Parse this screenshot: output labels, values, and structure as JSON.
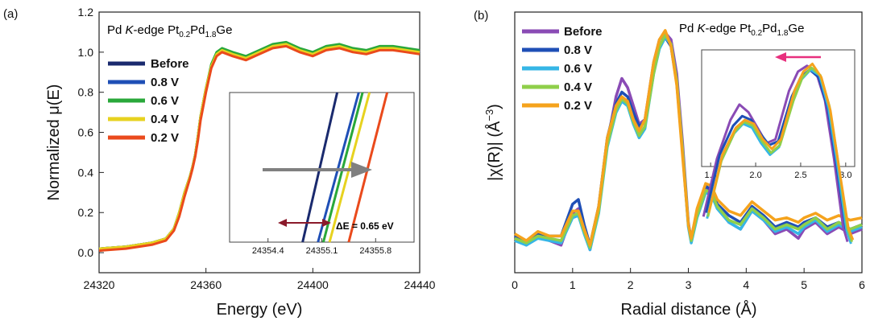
{
  "colors": {
    "Before_a": "#1a2a6e",
    "Before_b": "#8a4bb5",
    "v08": "#1f4fb6",
    "v06": "#29a83a",
    "v04": "#e7d21f",
    "v02": "#ea4a1c",
    "b_v06": "#35b6e6",
    "b_v04": "#8fcf4a",
    "b_v02": "#f5a31d",
    "title_a": "#8a2a64",
    "title_b": "#e8294a",
    "de": "#8b1a2b",
    "gray_arrow": "#808080",
    "pink_arrow": "#e8307e"
  },
  "chart_data": [
    {
      "panel": "(a)",
      "type": "line",
      "title_main": "Pd ",
      "title_italic": "K",
      "title_rest": "-edge Pt",
      "sub1": "0.2",
      "mid": "Pd",
      "sub2": "1.8",
      "tail": "Ge",
      "xlabel": "Energy (eV)",
      "ylabel": "Normalized μ(E)",
      "xlim": [
        24320,
        24440
      ],
      "ylim": [
        -0.1,
        1.2
      ],
      "xticks": [
        "24320",
        "24360",
        "24400",
        "24440"
      ],
      "xtick_values": [
        24320,
        24360,
        24400,
        24440
      ],
      "yticks": [
        "0.0",
        "0.2",
        "0.4",
        "0.6",
        "0.8",
        "1.0",
        "1.2"
      ],
      "ytick_values": [
        0.0,
        0.2,
        0.4,
        0.6,
        0.8,
        1.0,
        1.2
      ],
      "legend": [
        "Before",
        "0.8 V",
        "0.6 V",
        "0.4 V",
        "0.2 V"
      ],
      "series_x": [
        24320,
        24330,
        24340,
        24345,
        24348,
        24350,
        24352,
        24354,
        24355,
        24356,
        24357,
        24358,
        24360,
        24362,
        24364,
        24366,
        24370,
        24375,
        24380,
        24385,
        24390,
        24395,
        24400,
        24405,
        24410,
        24415,
        24420,
        24425,
        24430,
        24435,
        24440
      ],
      "series": [
        {
          "name": "Before",
          "values": [
            0.02,
            0.03,
            0.05,
            0.07,
            0.12,
            0.2,
            0.3,
            0.38,
            0.43,
            0.49,
            0.58,
            0.68,
            0.82,
            0.93,
            0.99,
            1.01,
            0.99,
            0.97,
            1.0,
            1.03,
            1.04,
            1.01,
            0.99,
            1.02,
            1.03,
            1.01,
            1.0,
            1.02,
            1.02,
            1.01,
            1.0
          ]
        },
        {
          "name": "0.8 V",
          "values": [
            0.02,
            0.03,
            0.05,
            0.07,
            0.12,
            0.2,
            0.3,
            0.38,
            0.43,
            0.49,
            0.58,
            0.68,
            0.82,
            0.93,
            0.99,
            1.01,
            0.99,
            0.97,
            1.0,
            1.03,
            1.04,
            1.01,
            0.99,
            1.02,
            1.03,
            1.01,
            1.0,
            1.02,
            1.02,
            1.01,
            1.0
          ]
        },
        {
          "name": "0.6 V",
          "values": [
            0.02,
            0.03,
            0.05,
            0.07,
            0.12,
            0.2,
            0.3,
            0.38,
            0.43,
            0.49,
            0.58,
            0.68,
            0.82,
            0.94,
            1.0,
            1.02,
            1.0,
            0.98,
            1.01,
            1.04,
            1.05,
            1.02,
            1.0,
            1.03,
            1.04,
            1.02,
            1.01,
            1.03,
            1.03,
            1.02,
            1.01
          ]
        },
        {
          "name": "0.4 V",
          "values": [
            0.02,
            0.03,
            0.05,
            0.07,
            0.12,
            0.2,
            0.3,
            0.38,
            0.43,
            0.49,
            0.58,
            0.68,
            0.82,
            0.93,
            0.99,
            1.01,
            0.99,
            0.97,
            1.0,
            1.03,
            1.04,
            1.01,
            0.99,
            1.02,
            1.03,
            1.01,
            1.0,
            1.02,
            1.02,
            1.01,
            1.0
          ]
        },
        {
          "name": "0.2 V",
          "values": [
            0.01,
            0.02,
            0.04,
            0.06,
            0.11,
            0.18,
            0.28,
            0.37,
            0.42,
            0.48,
            0.56,
            0.66,
            0.8,
            0.92,
            0.98,
            1.0,
            0.98,
            0.96,
            0.99,
            1.02,
            1.03,
            1.0,
            0.98,
            1.01,
            1.02,
            1.0,
            0.99,
            1.01,
            1.01,
            1.0,
            0.99
          ]
        }
      ],
      "inset": {
        "xticks": [
          "24354.4",
          "24355.1",
          "24355.8"
        ],
        "xtick_values": [
          24354.4,
          24355.1,
          24355.8
        ],
        "xlim": [
          24353.9,
          24356.3
        ],
        "line_bottom_x": [
          24354.85,
          24355.05,
          24355.12,
          24355.2,
          24355.45
        ],
        "line_top_x": [
          24355.3,
          24355.58,
          24355.63,
          24355.72,
          24355.95
        ],
        "de_label": "ΔE = 0.65 eV"
      }
    },
    {
      "panel": "(b)",
      "type": "line",
      "title_main": "Pd ",
      "title_italic": "K",
      "title_rest": "-edge Pt",
      "sub1": "0.2",
      "mid": "Pd",
      "sub2": "1.8",
      "tail": "Ge",
      "xlabel": "Radial distance (Å)",
      "ylabel_main": "|χ(R)| (Å",
      "ylabel_sup": "−3",
      "ylabel_end": ")",
      "xlim": [
        0,
        6
      ],
      "ylim": [
        0,
        1.0
      ],
      "xticks": [
        "0",
        "1",
        "2",
        "3",
        "4",
        "5",
        "6"
      ],
      "xtick_values": [
        0,
        1,
        2,
        3,
        4,
        5,
        6
      ],
      "legend": [
        "Before",
        "0.8 V",
        "0.6 V",
        "0.4 V",
        "0.2 V"
      ],
      "series_x": [
        0,
        0.2,
        0.4,
        0.6,
        0.8,
        1.0,
        1.1,
        1.2,
        1.3,
        1.45,
        1.6,
        1.75,
        1.85,
        1.95,
        2.05,
        2.15,
        2.25,
        2.4,
        2.5,
        2.6,
        2.7,
        2.8,
        2.9,
        3.0,
        3.05,
        3.15,
        3.3,
        3.4,
        3.5,
        3.7,
        3.9,
        4.1,
        4.3,
        4.5,
        4.7,
        4.9,
        5.0,
        5.2,
        5.4,
        5.6,
        5.8,
        6.0
      ],
      "series": [
        {
          "name": "Before",
          "values": [
            0.08,
            0.05,
            0.09,
            0.07,
            0.05,
            0.19,
            0.21,
            0.12,
            0.03,
            0.2,
            0.5,
            0.7,
            0.78,
            0.74,
            0.66,
            0.58,
            0.6,
            0.85,
            0.95,
            0.98,
            0.95,
            0.8,
            0.5,
            0.15,
            0.07,
            0.18,
            0.3,
            0.28,
            0.22,
            0.15,
            0.12,
            0.2,
            0.16,
            0.1,
            0.12,
            0.08,
            0.12,
            0.15,
            0.1,
            0.13,
            0.1,
            0.12
          ]
        },
        {
          "name": "0.8 V",
          "values": [
            0.09,
            0.06,
            0.1,
            0.09,
            0.09,
            0.23,
            0.25,
            0.14,
            0.05,
            0.22,
            0.52,
            0.67,
            0.72,
            0.7,
            0.63,
            0.57,
            0.59,
            0.82,
            0.92,
            0.96,
            0.92,
            0.76,
            0.46,
            0.14,
            0.08,
            0.2,
            0.31,
            0.29,
            0.23,
            0.18,
            0.15,
            0.22,
            0.18,
            0.13,
            0.15,
            0.13,
            0.15,
            0.17,
            0.13,
            0.15,
            0.12,
            0.14
          ]
        },
        {
          "name": "0.6 V",
          "values": [
            0.07,
            0.05,
            0.08,
            0.07,
            0.06,
            0.17,
            0.18,
            0.1,
            0.03,
            0.19,
            0.48,
            0.63,
            0.68,
            0.66,
            0.58,
            0.52,
            0.56,
            0.8,
            0.91,
            0.96,
            0.93,
            0.76,
            0.46,
            0.13,
            0.06,
            0.17,
            0.28,
            0.27,
            0.21,
            0.15,
            0.12,
            0.2,
            0.16,
            0.11,
            0.13,
            0.1,
            0.13,
            0.16,
            0.11,
            0.14,
            0.11,
            0.13
          ]
        },
        {
          "name": "0.4 V",
          "values": [
            0.08,
            0.06,
            0.09,
            0.08,
            0.07,
            0.18,
            0.19,
            0.11,
            0.04,
            0.2,
            0.49,
            0.64,
            0.69,
            0.67,
            0.59,
            0.53,
            0.57,
            0.8,
            0.92,
            0.97,
            0.93,
            0.77,
            0.47,
            0.14,
            0.07,
            0.18,
            0.29,
            0.28,
            0.22,
            0.16,
            0.14,
            0.21,
            0.17,
            0.12,
            0.14,
            0.12,
            0.14,
            0.17,
            0.12,
            0.15,
            0.12,
            0.14
          ]
        },
        {
          "name": "0.2 V",
          "values": [
            0.1,
            0.07,
            0.11,
            0.09,
            0.09,
            0.2,
            0.2,
            0.12,
            0.05,
            0.22,
            0.52,
            0.66,
            0.7,
            0.68,
            0.6,
            0.55,
            0.6,
            0.85,
            0.95,
            0.99,
            0.92,
            0.75,
            0.44,
            0.14,
            0.08,
            0.21,
            0.32,
            0.31,
            0.25,
            0.2,
            0.18,
            0.24,
            0.2,
            0.16,
            0.17,
            0.15,
            0.17,
            0.19,
            0.16,
            0.18,
            0.16,
            0.17
          ]
        }
      ],
      "inset": {
        "xticks": [
          "1.5",
          "2.0",
          "2.5",
          "3.0"
        ],
        "xtick_values": [
          1.5,
          2.0,
          2.5,
          3.0
        ],
        "xlim": [
          1.4,
          3.1
        ]
      }
    }
  ]
}
